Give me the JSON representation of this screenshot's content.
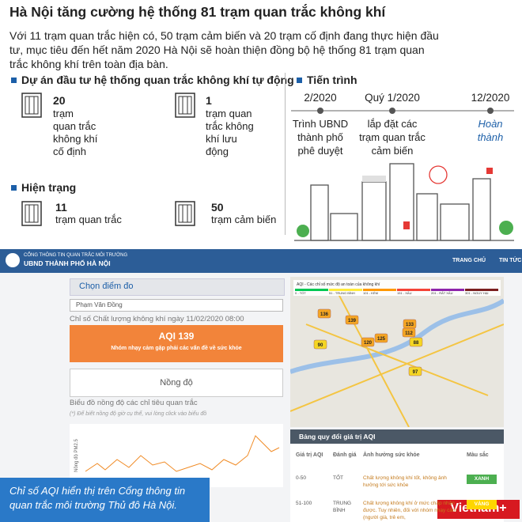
{
  "header": {
    "title": "Hà Nội tăng cường hệ thống 81 trạm quan trắc không khí",
    "intro": [
      "Với 11 trạm quan trắc hiện có, 50 trạm cảm biến và 20 trạm cố định đang thực hiện đầu",
      "tư, mục tiêu đến hết năm 2020 Hà Nội sẽ hoàn thiện đồng bộ hệ thống 81 trạm quan",
      "trắc không khí trên toàn địa bàn."
    ]
  },
  "investment": {
    "heading": "Dự án đầu tư hệ thống quan trắc không khí tự động",
    "items": [
      {
        "number": "20",
        "lines": [
          "trạm",
          "quan trắc",
          "không khí",
          "cố định"
        ]
      },
      {
        "number": "1",
        "lines": [
          "trạm quan",
          "trắc không",
          "khí lưu",
          "động"
        ]
      }
    ]
  },
  "current": {
    "heading": "Hiện trạng",
    "items": [
      {
        "number": "11",
        "lines": [
          "trạm quan trắc"
        ]
      },
      {
        "number": "50",
        "lines": [
          "trạm cảm biến"
        ]
      }
    ]
  },
  "timeline": {
    "heading": "Tiến trình",
    "steps": [
      {
        "date": "2/2020",
        "lines": [
          "Trình UBND",
          "thành phố",
          "phê duyệt"
        ]
      },
      {
        "date": "Quý 1/2020",
        "lines": [
          "lắp đặt các",
          "trạm quan trắc",
          "cảm biến"
        ]
      },
      {
        "date": "12/2020",
        "lines": [
          "Hoàn",
          "thành"
        ]
      }
    ]
  },
  "portal": {
    "org": [
      "CỔNG THÔNG TIN QUAN TRẮC MÔI TRƯỜNG",
      "UBND THÀNH PHỐ HÀ NỘI"
    ],
    "nav": [
      "TRANG CHỦ",
      "TIN TỨC"
    ],
    "panel_title": "Chọn điểm đo",
    "station": "Phạm Văn Đồng",
    "index_caption": "Chỉ số Chất lượng không khí ngày 11/02/2020 08:00",
    "aqi": "AQI 139",
    "aqi_note": "Nhóm nhạy cảm gặp phải các vấn đề về sức khỏe",
    "concentration": "Nồng độ",
    "chart_caption": "Biểu đồ nồng độ các chỉ tiêu quan trắc",
    "chart_hint": "(*) Để biết nồng độ giờ cụ thể, vui lòng click vào biểu đồ",
    "chart_ylabel": "Nồng độ PM2.5",
    "map_legend_title": "AQI - Các chỉ số mức độ an toàn của không khí",
    "map_legend": [
      {
        "label": "0 - TỐT",
        "color": "#00c853"
      },
      {
        "label": "51 - TRUNG BÌNH",
        "color": "#ffeb3b"
      },
      {
        "label": "101 - KÉM",
        "color": "#ff9800"
      },
      {
        "label": "151 - XẤU",
        "color": "#f44336"
      },
      {
        "label": "201 - RẤT XẤU",
        "color": "#8e24aa"
      },
      {
        "label": "301 - NGUY HẠI",
        "color": "#7b1f1f"
      }
    ],
    "markers": [
      {
        "label": "136",
        "color": "#f5a623"
      },
      {
        "label": "139",
        "color": "#f5a623"
      },
      {
        "label": "90",
        "color": "#f5d623"
      },
      {
        "label": "120",
        "color": "#f5a623"
      },
      {
        "label": "125",
        "color": "#f5a623"
      },
      {
        "label": "133",
        "color": "#f5a623"
      },
      {
        "label": "112",
        "color": "#f5a623"
      },
      {
        "label": "88",
        "color": "#f5d623"
      },
      {
        "label": "97",
        "color": "#f5d623"
      }
    ],
    "table": {
      "title": "Bảng quy đổi giá trị AQI",
      "headers": [
        "Giá trị AQI",
        "Đánh giá",
        "Ảnh hưởng sức khỏe",
        "Màu sắc"
      ],
      "rows": [
        [
          "0-50",
          "TỐT",
          "Chất lượng không khí tốt, không ảnh hưởng tới sức khỏe",
          "XANH"
        ],
        [
          "51-100",
          "TRUNG BÌNH",
          "Chất lượng không khí ở mức chấp nhận được. Tuy nhiên, đối với nhóm nhạy cảm (người già, trẻ em,",
          "VÀNG"
        ]
      ]
    }
  },
  "caption": "Chỉ số AQI hiển thị trên Cổng thông tin quan trắc môi trường Thủ đô Hà Nội.",
  "brand": "Vietnam+"
}
